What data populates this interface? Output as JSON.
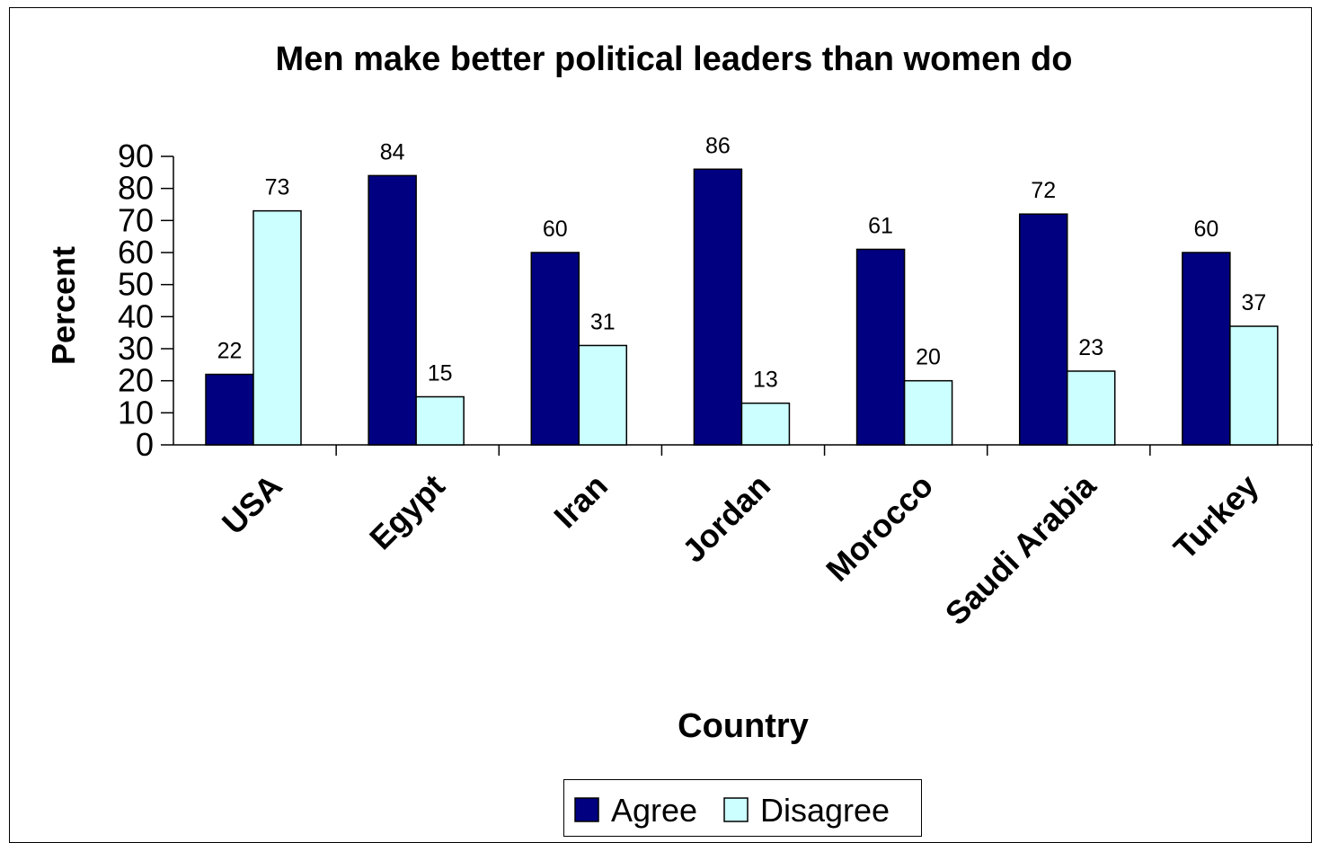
{
  "chart_data": {
    "type": "bar",
    "title": "Men make better political leaders than women do",
    "xlabel": "Country",
    "ylabel": "Percent",
    "categories": [
      "USA",
      "Egypt",
      "Iran",
      "Jordan",
      "Morocco",
      "Saudi Arabia",
      "Turkey"
    ],
    "series": [
      {
        "name": "Agree",
        "color": "#000080",
        "values": [
          22,
          84,
          60,
          86,
          61,
          72,
          60
        ]
      },
      {
        "name": "Disagree",
        "color": "#CCFFFF",
        "values": [
          73,
          15,
          31,
          13,
          20,
          23,
          37
        ]
      }
    ],
    "ylim": [
      0,
      90
    ],
    "yticks": [
      0,
      10,
      20,
      30,
      40,
      50,
      60,
      70,
      80,
      90
    ],
    "grid": false,
    "legend_position": "bottom"
  }
}
